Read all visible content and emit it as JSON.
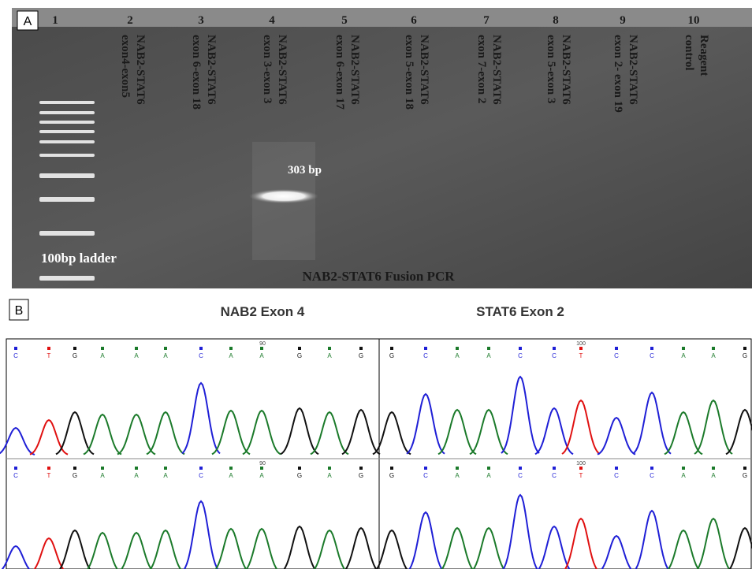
{
  "panel_a": {
    "label": "A",
    "lanes": [
      {
        "number": "1"
      },
      {
        "number": "2",
        "label": [
          "NAB2-STAT6",
          "exon4-exon5"
        ]
      },
      {
        "number": "3",
        "label": [
          "NAB2-STAT6",
          "exon 6-exon 18"
        ]
      },
      {
        "number": "4",
        "label": [
          "NAB2-STAT6",
          "exon 3-exon 3"
        ]
      },
      {
        "number": "5",
        "label": [
          "NAB2-STAT6",
          "exon 6-exon 17"
        ]
      },
      {
        "number": "6",
        "label": [
          "NAB2-STAT6",
          "exon 5-exon 18"
        ]
      },
      {
        "number": "7",
        "label": [
          "NAB2-STAT6",
          "exon 7-exon 2"
        ]
      },
      {
        "number": "8",
        "label": [
          "NAB2-STAT6",
          "exon 5-exon 3"
        ]
      },
      {
        "number": "9",
        "label": [
          "NAB2-STAT6",
          "exon 2- exon 19"
        ]
      },
      {
        "number": "10",
        "label": [
          "Reagent",
          "control"
        ]
      }
    ],
    "band_label": "303 bp",
    "ladder_label": "100bp ladder",
    "caption": "NAB2-STAT6 Fusion PCR"
  },
  "panel_b": {
    "label": "B",
    "left": {
      "title": "NAB2 Exon 4",
      "bases": [
        "C",
        "T",
        "G",
        "A",
        "A",
        "A",
        "C",
        "A",
        "A",
        "G",
        "A",
        "G"
      ],
      "position": "90"
    },
    "right": {
      "title": "STAT6 Exon 2",
      "bases": [
        "G",
        "C",
        "A",
        "A",
        "C",
        "C",
        "T",
        "C",
        "C",
        "A",
        "A",
        "G"
      ],
      "position": "100"
    }
  }
}
